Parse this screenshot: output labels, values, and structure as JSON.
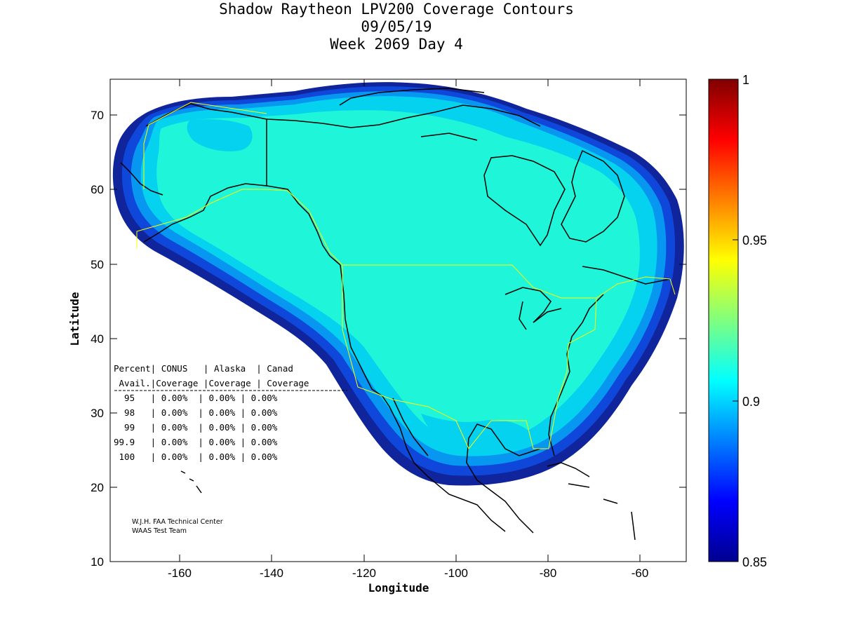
{
  "title": {
    "line1": "Shadow Raytheon LPV200 Coverage Contours",
    "line2": "09/05/19",
    "line3": "Week 2069 Day 4"
  },
  "map": {
    "xlabel": "Longitude",
    "ylabel": "Latitude",
    "xlim": [
      -175,
      -50
    ],
    "ylim": [
      10,
      75
    ],
    "x_ticks": [
      "-160",
      "-140",
      "-120",
      "-100",
      "-80",
      "-60"
    ],
    "y_ticks": [
      "10",
      "20",
      "30",
      "40",
      "50",
      "60",
      "70"
    ],
    "colors": {
      "coverage_fill": "#1ff5d9",
      "border_outline": "#ffff00",
      "coastline": "#000000"
    }
  },
  "colorbar": {
    "min": 0.85,
    "max": 1,
    "tick_labels": [
      "0.85",
      "0.9",
      "0.95",
      "1"
    ],
    "colormap": "jet"
  },
  "stats_table": {
    "header1": "Percent| CONUS   | Alaska  | Canad",
    "header2": " Avail.|Coverage |Coverage | Coverage",
    "rows": [
      "  95   | 0.00%  | 0.00% | 0.00%",
      "  98   | 0.00%  | 0.00% | 0.00%",
      "  99   | 0.00%  | 0.00% | 0.00%",
      "99.9   | 0.00%  | 0.00% | 0.00%",
      " 100   | 0.00%  | 0.00% | 0.00%"
    ]
  },
  "credits": {
    "line1": "W.J.H. FAA Technical Center",
    "line2": "WAAS Test Team"
  }
}
